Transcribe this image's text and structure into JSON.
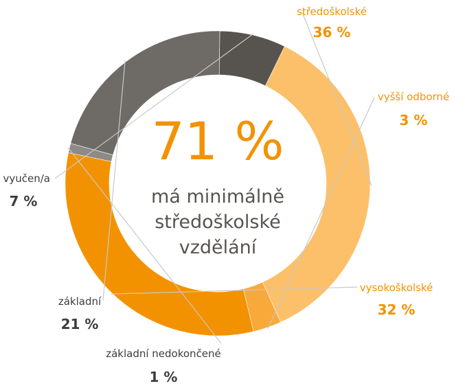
{
  "chart_data": {
    "type": "donut",
    "center": {
      "value": "71 %",
      "lines": [
        "má minimálně",
        "středoškolské",
        "vzdělání"
      ]
    },
    "slices": [
      {
        "label": "středoškolské",
        "value": 36,
        "value_text": "36 %",
        "color": "#fcc06a"
      },
      {
        "label": "vyšší odborné",
        "value": 3,
        "value_text": "3 %",
        "color": "#f9a93a"
      },
      {
        "label": "vysokoškolské",
        "value": 32,
        "value_text": "32 %",
        "color": "#f39200"
      },
      {
        "label": "základní nedokončené",
        "value": 1,
        "value_text": "1 %",
        "color": "#8d8b87"
      },
      {
        "label": "základní",
        "value": 21,
        "value_text": "21 %",
        "color": "#6e6b66"
      },
      {
        "label": "vyučen/a",
        "value": 7,
        "value_text": "7 %",
        "color": "#575450"
      }
    ]
  },
  "colors": {
    "accent_orange": "#f39200",
    "dark_gray": "#3c3c3c",
    "center_text": "#575450",
    "leader_line": "#c8c8c8"
  }
}
